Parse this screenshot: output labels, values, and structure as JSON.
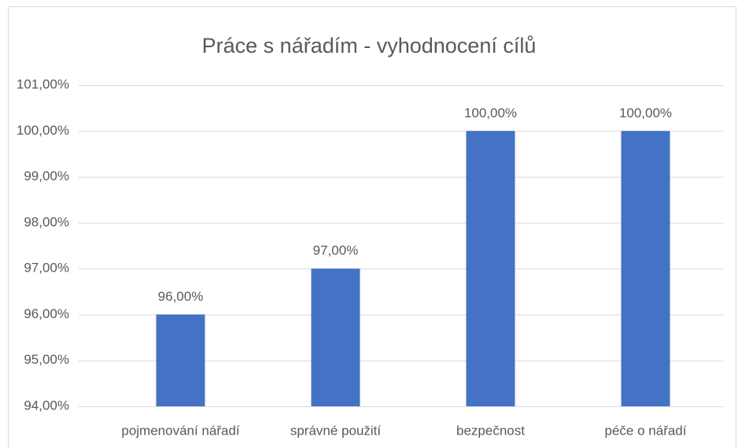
{
  "chart_data": {
    "type": "bar",
    "title": "Práce s nářadím - vyhodnocení cílů",
    "categories": [
      "pojmenování nářadí",
      "správné použití",
      "bezpečnost",
      "péče o nářadí"
    ],
    "values": [
      96,
      97,
      100,
      100
    ],
    "value_labels": [
      "96,00%",
      "97,00%",
      "100,00%",
      "100,00%"
    ],
    "color": "#4472c4",
    "ylim": [
      94,
      101
    ],
    "yticks": [
      {
        "value": 94,
        "label": "94,00%"
      },
      {
        "value": 95,
        "label": "95,00%"
      },
      {
        "value": 96,
        "label": "96,00%"
      },
      {
        "value": 97,
        "label": "97,00%"
      },
      {
        "value": 98,
        "label": "98,00%"
      },
      {
        "value": 99,
        "label": "99,00%"
      },
      {
        "value": 100,
        "label": "100,00%"
      },
      {
        "value": 101,
        "label": "101,00%"
      }
    ],
    "grid": true
  }
}
